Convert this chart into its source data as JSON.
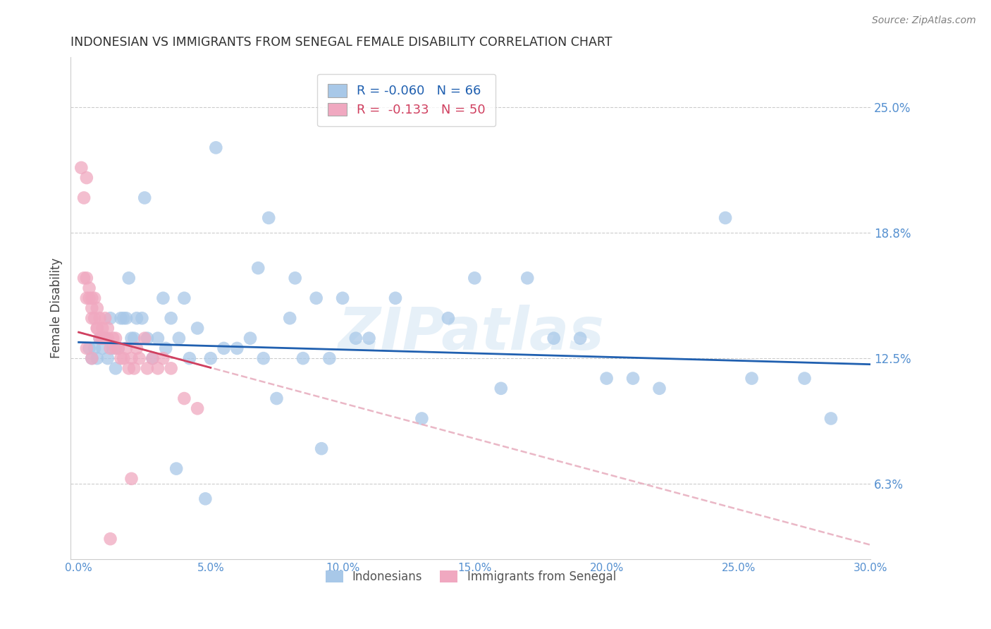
{
  "title": "INDONESIAN VS IMMIGRANTS FROM SENEGAL FEMALE DISABILITY CORRELATION CHART",
  "source": "Source: ZipAtlas.com",
  "ylabel": "Female Disability",
  "xlabel_ticks": [
    "0.0%",
    "5.0%",
    "10.0%",
    "15.0%",
    "20.0%",
    "25.0%",
    "30.0%"
  ],
  "xlabel_vals": [
    0.0,
    5.0,
    10.0,
    15.0,
    20.0,
    25.0,
    30.0
  ],
  "ylabel_ticks": [
    "6.3%",
    "12.5%",
    "18.8%",
    "25.0%"
  ],
  "ylabel_vals": [
    6.25,
    12.5,
    18.75,
    25.0
  ],
  "xlim": [
    -0.3,
    30.0
  ],
  "ylim": [
    2.5,
    27.5
  ],
  "watermark": "ZIPatlas",
  "legend_R_blue": "-0.060",
  "legend_N_blue": "66",
  "legend_R_pink": "-0.133",
  "legend_N_pink": "50",
  "blue_color": "#a8c8e8",
  "pink_color": "#f0a8c0",
  "trendline_blue_color": "#2060b0",
  "trendline_pink_color": "#d04060",
  "trendline_pink_dash_color": "#e8b0c0",
  "axis_label_color": "#5590d0",
  "title_color": "#303030",
  "source_color": "#808080",
  "blue_trend_start_y": 13.3,
  "blue_trend_end_y": 12.2,
  "pink_trend_start_y": 13.8,
  "pink_trend_end_y": 3.2,
  "blue_points_x": [
    0.4,
    0.5,
    0.6,
    0.7,
    0.8,
    0.9,
    1.0,
    1.1,
    1.2,
    1.3,
    1.5,
    1.6,
    1.8,
    2.0,
    2.2,
    2.4,
    2.6,
    2.8,
    3.0,
    3.2,
    3.5,
    3.8,
    4.0,
    4.5,
    5.0,
    5.5,
    6.0,
    6.5,
    7.0,
    7.5,
    8.0,
    8.5,
    9.0,
    9.5,
    10.0,
    10.5,
    11.0,
    12.0,
    13.0,
    14.0,
    15.0,
    16.0,
    17.0,
    18.0,
    19.0,
    20.0,
    21.0,
    22.0,
    24.5,
    25.5,
    27.5,
    28.5,
    5.2,
    6.8,
    7.2,
    8.2,
    2.5,
    3.3,
    1.4,
    1.7,
    4.2,
    2.1,
    9.2,
    1.9,
    3.7,
    4.8
  ],
  "blue_points_y": [
    13.0,
    12.5,
    13.0,
    12.5,
    13.5,
    13.0,
    13.5,
    12.5,
    14.5,
    13.0,
    13.0,
    14.5,
    14.5,
    13.5,
    14.5,
    14.5,
    13.5,
    12.5,
    13.5,
    15.5,
    14.5,
    13.5,
    15.5,
    14.0,
    12.5,
    13.0,
    13.0,
    13.5,
    12.5,
    10.5,
    14.5,
    12.5,
    15.5,
    12.5,
    15.5,
    13.5,
    13.5,
    15.5,
    9.5,
    14.5,
    16.5,
    11.0,
    16.5,
    13.5,
    13.5,
    11.5,
    11.5,
    11.0,
    19.5,
    11.5,
    11.5,
    9.5,
    23.0,
    17.0,
    19.5,
    16.5,
    20.5,
    13.0,
    12.0,
    14.5,
    12.5,
    13.5,
    8.0,
    16.5,
    7.0,
    5.5
  ],
  "pink_points_x": [
    0.1,
    0.2,
    0.2,
    0.3,
    0.3,
    0.3,
    0.4,
    0.4,
    0.5,
    0.5,
    0.5,
    0.6,
    0.6,
    0.7,
    0.7,
    0.8,
    0.8,
    0.9,
    0.9,
    1.0,
    1.0,
    1.1,
    1.1,
    1.2,
    1.3,
    1.4,
    1.4,
    1.5,
    1.6,
    1.7,
    1.8,
    1.9,
    2.0,
    2.1,
    2.2,
    2.3,
    2.5,
    2.6,
    2.8,
    3.0,
    3.2,
    3.5,
    4.0,
    4.5,
    0.3,
    0.5,
    0.7,
    0.9,
    1.2,
    2.0
  ],
  "pink_points_y": [
    22.0,
    20.5,
    16.5,
    16.5,
    15.5,
    21.5,
    15.5,
    16.0,
    15.5,
    14.5,
    15.0,
    14.5,
    15.5,
    15.0,
    14.0,
    14.5,
    13.5,
    14.0,
    13.5,
    13.5,
    14.5,
    13.5,
    14.0,
    13.0,
    13.5,
    13.0,
    13.5,
    13.0,
    12.5,
    12.5,
    13.0,
    12.0,
    12.5,
    12.0,
    13.0,
    12.5,
    13.5,
    12.0,
    12.5,
    12.0,
    12.5,
    12.0,
    10.5,
    10.0,
    13.0,
    12.5,
    14.0,
    13.5,
    3.5,
    6.5
  ]
}
